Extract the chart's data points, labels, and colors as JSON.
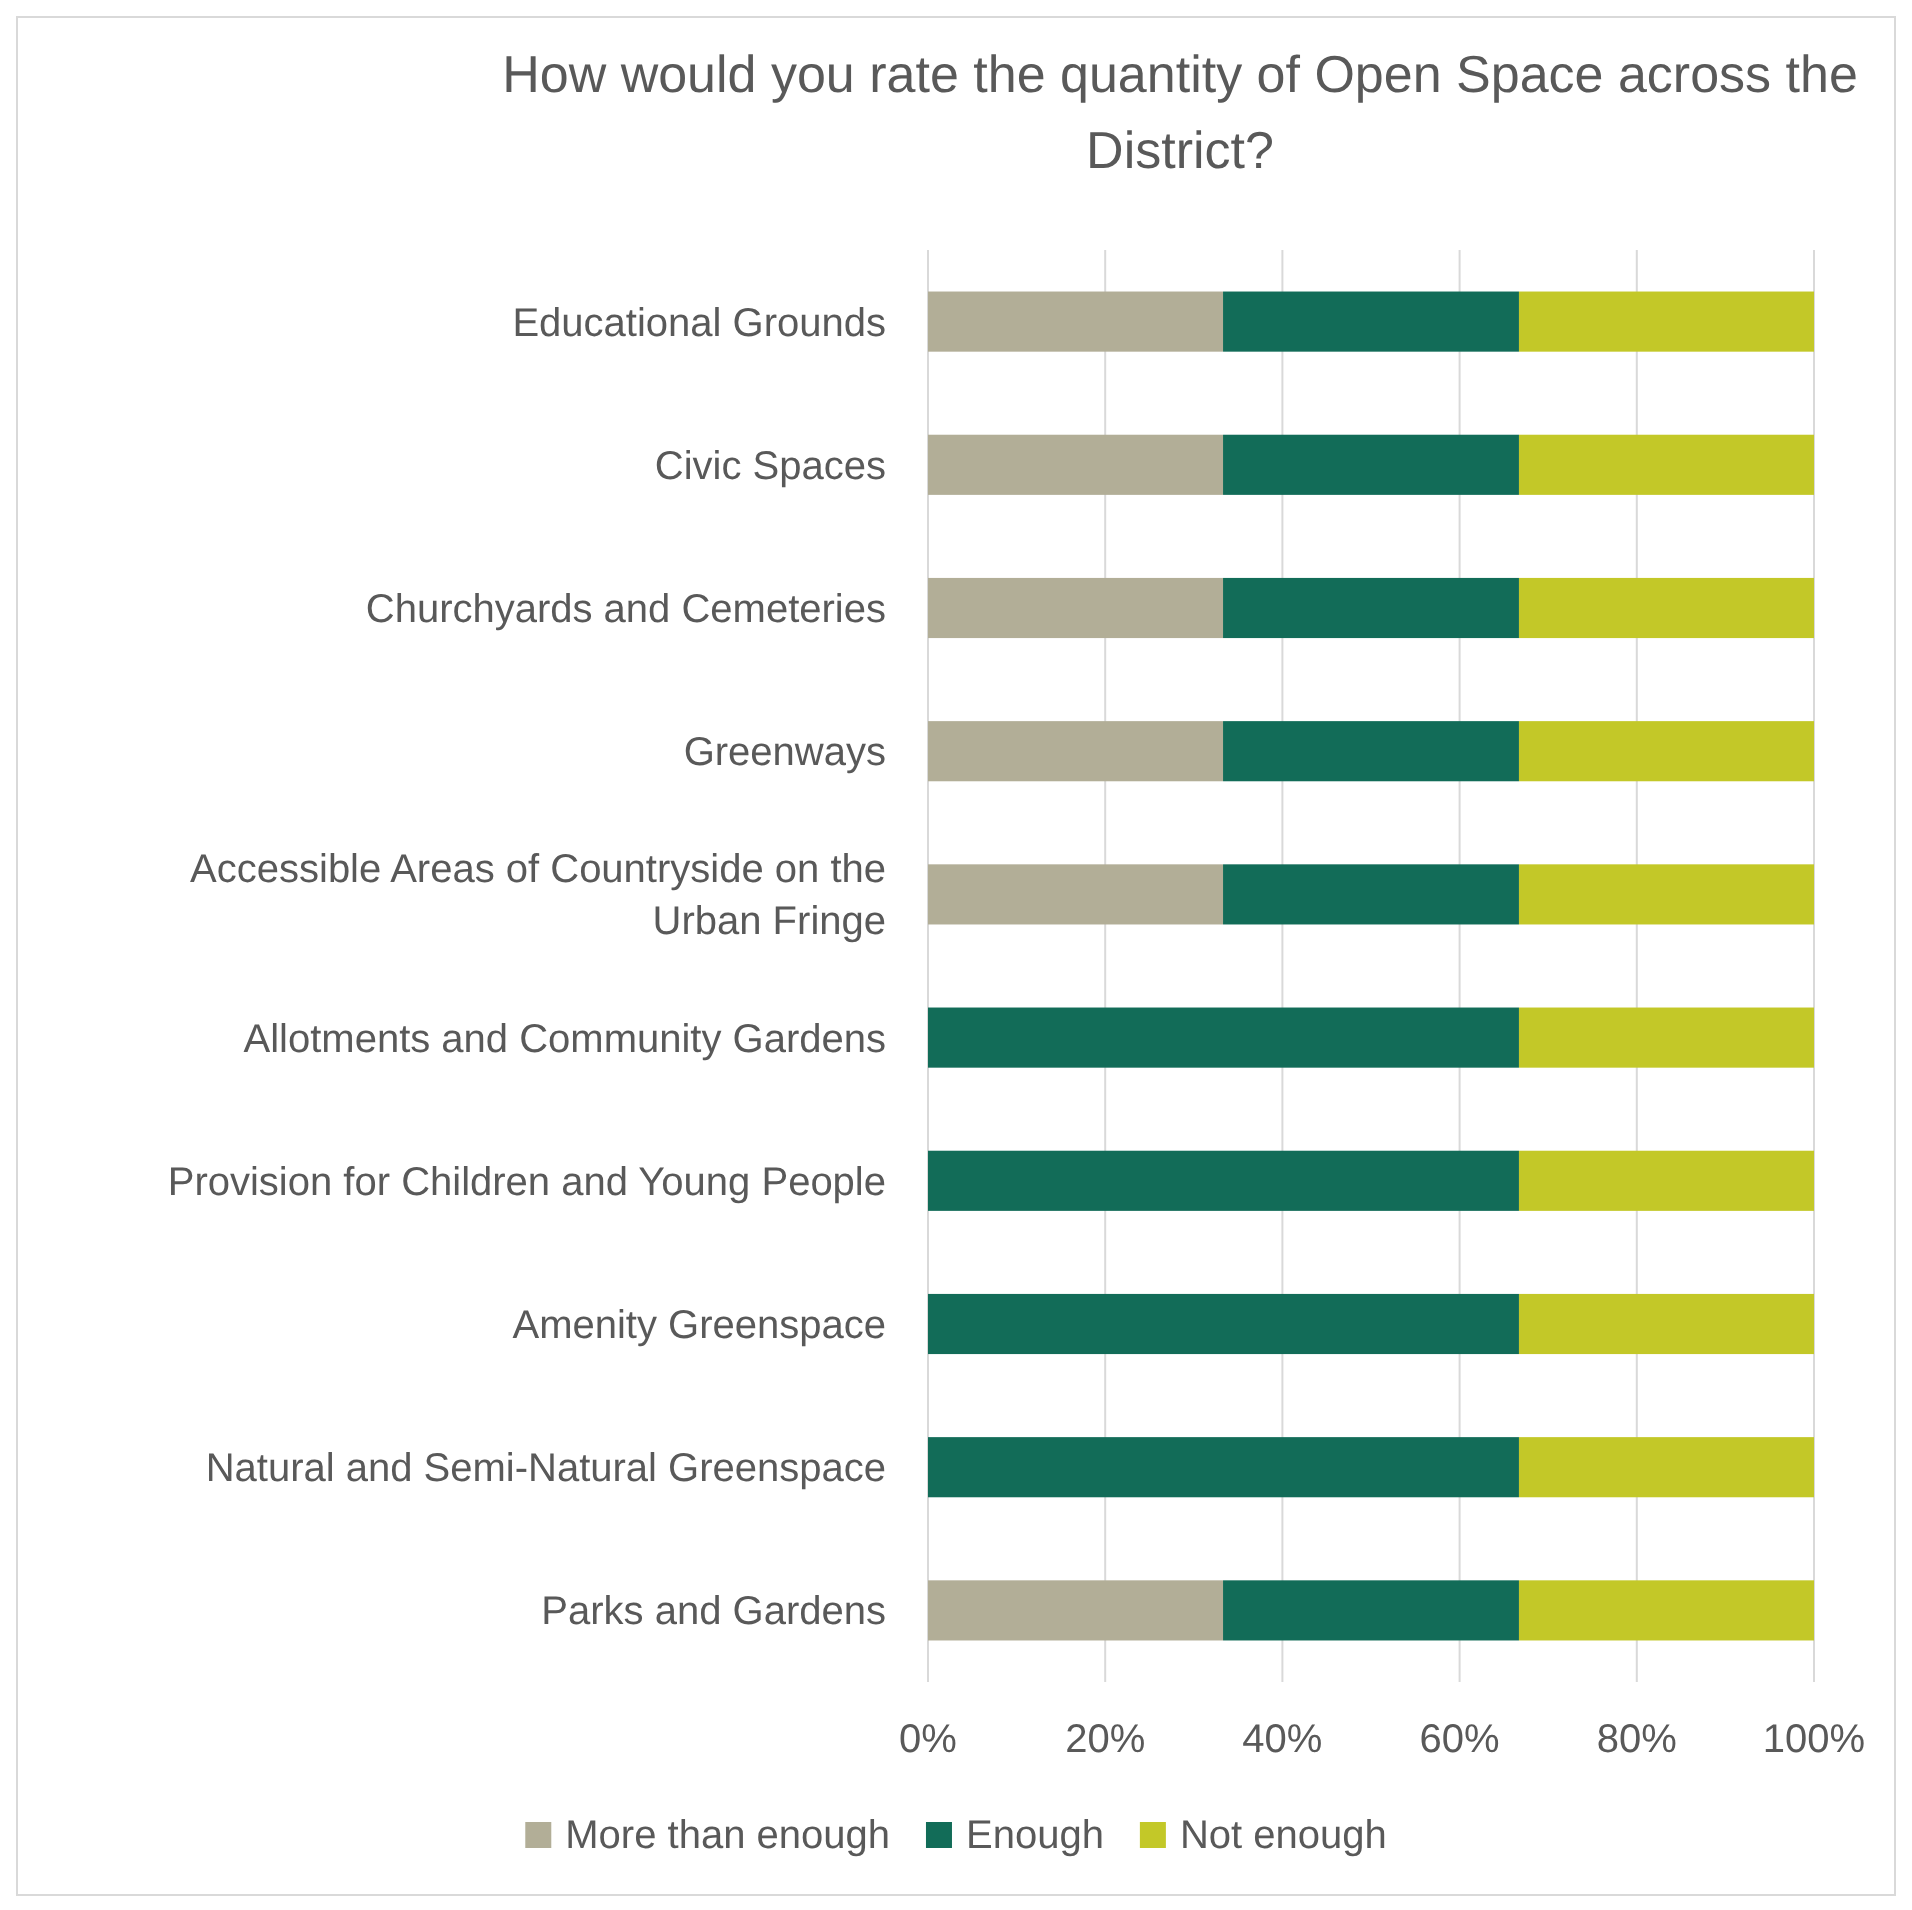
{
  "chart_data": {
    "type": "bar",
    "orientation": "horizontal",
    "stacked": true,
    "title": "How would you rate the quantity of Open Space across the District?",
    "categories": [
      "Educational Grounds",
      "Civic Spaces",
      "Churchyards and Cemeteries",
      "Greenways",
      "Accessible Areas of Countryside on the Urban Fringe",
      "Allotments and Community Gardens",
      "Provision for Children and Young People",
      "Amenity Greenspace",
      "Natural and Semi-Natural Greenspace",
      "Parks and Gardens"
    ],
    "series": [
      {
        "name": "More than enough",
        "color": "#b2ae97",
        "values": [
          33.3,
          33.3,
          33.3,
          33.3,
          33.3,
          0,
          0,
          0,
          0,
          33.3
        ]
      },
      {
        "name": "Enough",
        "color": "#126c58",
        "values": [
          33.4,
          33.4,
          33.4,
          33.4,
          33.4,
          66.7,
          66.7,
          66.7,
          66.7,
          33.4
        ]
      },
      {
        "name": "Not enough",
        "color": "#c3c828",
        "values": [
          33.3,
          33.3,
          33.3,
          33.3,
          33.3,
          33.3,
          33.3,
          33.3,
          33.3,
          33.3
        ]
      }
    ],
    "xlim": [
      0,
      100
    ],
    "xticks": [
      {
        "value": 0,
        "label": "0%"
      },
      {
        "value": 20,
        "label": "20%"
      },
      {
        "value": 40,
        "label": "40%"
      },
      {
        "value": 60,
        "label": "60%"
      },
      {
        "value": 80,
        "label": "80%"
      },
      {
        "value": 100,
        "label": "100%"
      }
    ],
    "grid": "x",
    "legend": "bottom"
  }
}
